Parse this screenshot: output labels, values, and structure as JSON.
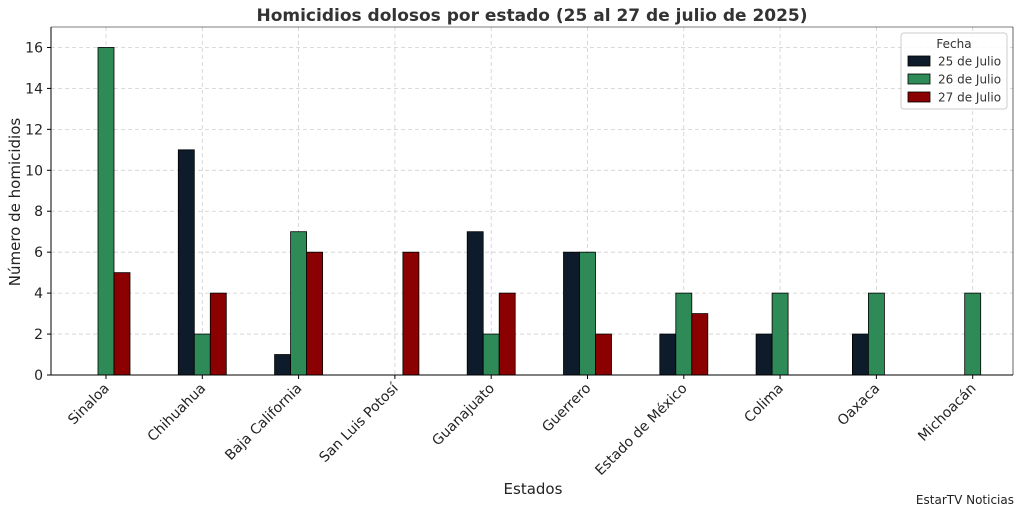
{
  "chart_data": {
    "type": "bar",
    "title": "Homicidios dolosos por estado (25 al 27 de julio de 2025)",
    "xlabel": "Estados",
    "ylabel": "Número de homicidios",
    "ylim": [
      0,
      17
    ],
    "yticks": [
      0,
      2,
      4,
      6,
      8,
      10,
      12,
      14,
      16
    ],
    "grid": true,
    "legend_title": "Fecha",
    "legend_position": "top-right",
    "categories": [
      "Sinaloa",
      "Chihuahua",
      "Baja California",
      "San Luis Potosí",
      "Guanajuato",
      "Guerrero",
      "Estado de México",
      "Colima",
      "Oaxaca",
      "Michoacán"
    ],
    "series": [
      {
        "name": "25 de Julio",
        "color": "#0d1b2a",
        "values": [
          0,
          11,
          1,
          0,
          7,
          6,
          2,
          2,
          2,
          0
        ]
      },
      {
        "name": "26 de Julio",
        "color": "#2e8b57",
        "values": [
          16,
          2,
          7,
          0,
          2,
          6,
          4,
          4,
          4,
          4
        ]
      },
      {
        "name": "27 de Julio",
        "color": "#8b0000",
        "values": [
          5,
          4,
          6,
          6,
          4,
          2,
          3,
          0,
          0,
          0
        ]
      }
    ]
  },
  "footer": {
    "credit": "EstarTV Noticias"
  }
}
